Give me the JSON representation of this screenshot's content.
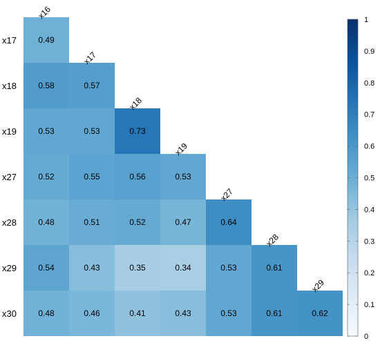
{
  "chart_data": {
    "type": "heatmap",
    "title": "",
    "variables": [
      "x16",
      "x17",
      "x18",
      "x19",
      "x27",
      "x28",
      "x29",
      "x30"
    ],
    "row_labels": [
      "x17",
      "x18",
      "x19",
      "x27",
      "x28",
      "x29",
      "x30"
    ],
    "column_labels": [
      "x16",
      "x17",
      "x18",
      "x19",
      "x27",
      "x28",
      "x29"
    ],
    "matrix": [
      [
        "0.49"
      ],
      [
        "0.58",
        "0.57"
      ],
      [
        "0.53",
        "0.53",
        "0.73"
      ],
      [
        "0.52",
        "0.55",
        "0.56",
        "0.53"
      ],
      [
        "0.48",
        "0.51",
        "0.52",
        "0.47",
        "0.64"
      ],
      [
        "0.54",
        "0.43",
        "0.35",
        "0.34",
        "0.53",
        "0.61"
      ],
      [
        "0.48",
        "0.46",
        "0.41",
        "0.43",
        "0.53",
        "0.61",
        "0.62"
      ]
    ],
    "colorbar": {
      "range": [
        0,
        1
      ],
      "ticks": [
        "0",
        "0.1",
        "0.2",
        "0.3",
        "0.4",
        "0.5",
        "0.6",
        "0.7",
        "0.8",
        "0.9",
        "1"
      ],
      "colors": [
        "#f7fbff",
        "#deebf7",
        "#c6dbef",
        "#9ecae1",
        "#6baed6",
        "#4292c6",
        "#2171b5",
        "#08519c",
        "#08306b"
      ]
    },
    "layout": "lower-triangle",
    "grid": false
  }
}
